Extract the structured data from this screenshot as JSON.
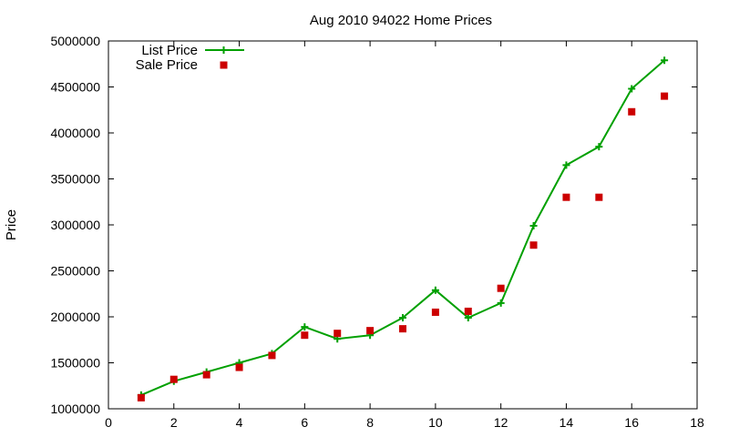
{
  "chart_data": {
    "type": "line",
    "title": "Aug 2010 94022 Home Prices",
    "xlabel": "",
    "ylabel": "Price",
    "xlim": [
      0,
      18
    ],
    "ylim": [
      1000000,
      5000000
    ],
    "x_ticks": [
      0,
      2,
      4,
      6,
      8,
      10,
      12,
      14,
      16,
      18
    ],
    "y_ticks": [
      1000000,
      1500000,
      2000000,
      2500000,
      3000000,
      3500000,
      4000000,
      4500000,
      5000000
    ],
    "grid": false,
    "legend_position": "top-left",
    "series": [
      {
        "name": "List Price",
        "style": "line-plus",
        "color": "#00a000",
        "x": [
          1,
          2,
          3,
          4,
          5,
          6,
          7,
          8,
          9,
          10,
          11,
          12,
          13,
          14,
          15,
          16,
          17
        ],
        "values": [
          1150000,
          1300000,
          1400000,
          1500000,
          1600000,
          1890000,
          1760000,
          1800000,
          1990000,
          2290000,
          1990000,
          2150000,
          2990000,
          3650000,
          3850000,
          4480000,
          4790000
        ]
      },
      {
        "name": "Sale Price",
        "style": "square-points",
        "color": "#cc0000",
        "x": [
          1,
          2,
          3,
          4,
          5,
          6,
          7,
          8,
          9,
          10,
          11,
          12,
          13,
          14,
          15,
          16,
          17
        ],
        "values": [
          1120000,
          1320000,
          1370000,
          1450000,
          1580000,
          1800000,
          1820000,
          1850000,
          1870000,
          2050000,
          2060000,
          2310000,
          2780000,
          3300000,
          3300000,
          4230000,
          4400000
        ]
      }
    ]
  }
}
